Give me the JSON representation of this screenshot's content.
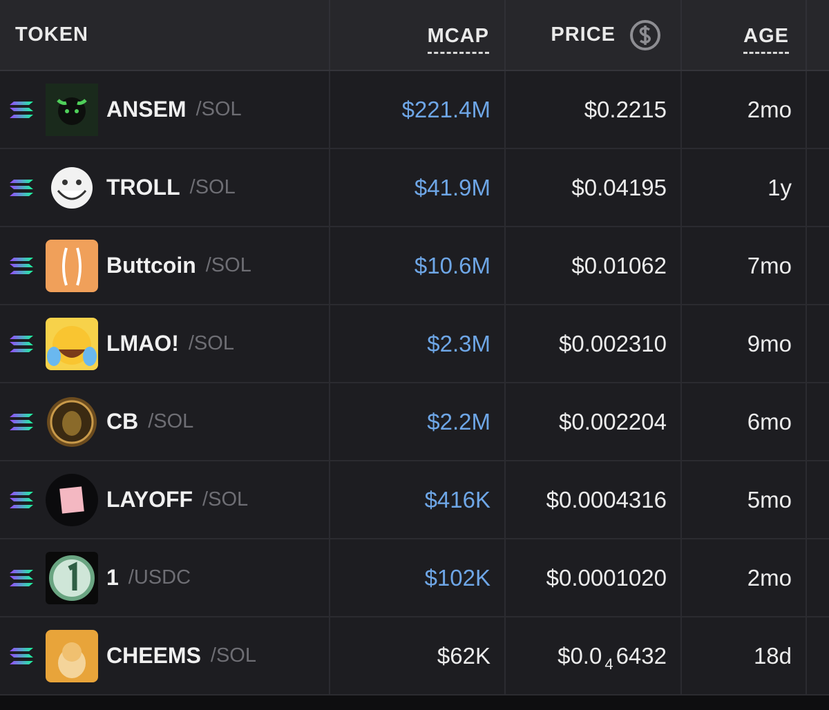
{
  "table": {
    "headers": [
      "TOKEN",
      "MCAP",
      "PRICE",
      "AGE"
    ],
    "rows": [
      {
        "name": "ANSEM",
        "quote": "/SOL",
        "mcap": "$221.4M",
        "price": "$0.2215",
        "age": "2mo"
      },
      {
        "name": "TROLL",
        "quote": "/SOL",
        "mcap": "$41.9M",
        "price": "$0.04195",
        "age": "1y"
      },
      {
        "name": "Buttcoin",
        "quote": "/SOL",
        "mcap": "$10.6M",
        "price": "$0.01062",
        "age": "7mo"
      },
      {
        "name": "LMAO!",
        "quote": "/SOL",
        "mcap": "$2.3M",
        "price": "$0.002310",
        "age": "9mo"
      },
      {
        "name": "CB",
        "quote": "/SOL",
        "mcap": "$2.2M",
        "price": "$0.002204",
        "age": "6mo"
      },
      {
        "name": "LAYOFF",
        "quote": "/SOL",
        "mcap": "$416K",
        "price": "$0.0004316",
        "age": "5mo"
      },
      {
        "name": "1",
        "quote": "/USDC",
        "mcap": "$102K",
        "price": "$0.0001020",
        "age": "2mo"
      },
      {
        "name": "CHEEMS",
        "quote": "/SOL",
        "mcap": "$62K",
        "price": {
          "lead": "$0.0",
          "sub": "4",
          "tail": "6432"
        },
        "age": "18d"
      }
    ]
  }
}
